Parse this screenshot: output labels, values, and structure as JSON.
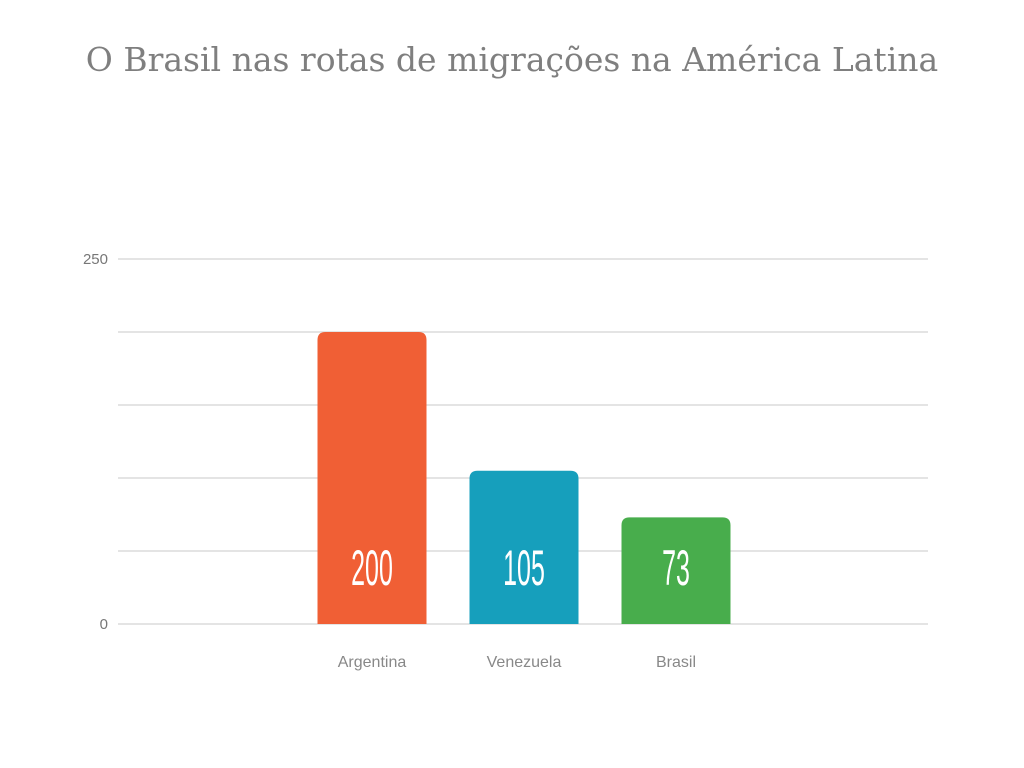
{
  "chart_data": {
    "type": "bar",
    "title": "O Brasil nas rotas de migrações na América Latina",
    "categories": [
      "Argentina",
      "Venezuela",
      "Brasil"
    ],
    "values": [
      200,
      105,
      73
    ],
    "data_labels": [
      "200",
      "105",
      "73"
    ],
    "colors": [
      "#f05f35",
      "#169fbc",
      "#48ad4c"
    ],
    "ylim": [
      0,
      250
    ],
    "yticks_labeled": [
      "0",
      "250"
    ],
    "gridlines": [
      0,
      50,
      100,
      150,
      200,
      250
    ],
    "grid": true,
    "xlabel": "",
    "ylabel": ""
  }
}
